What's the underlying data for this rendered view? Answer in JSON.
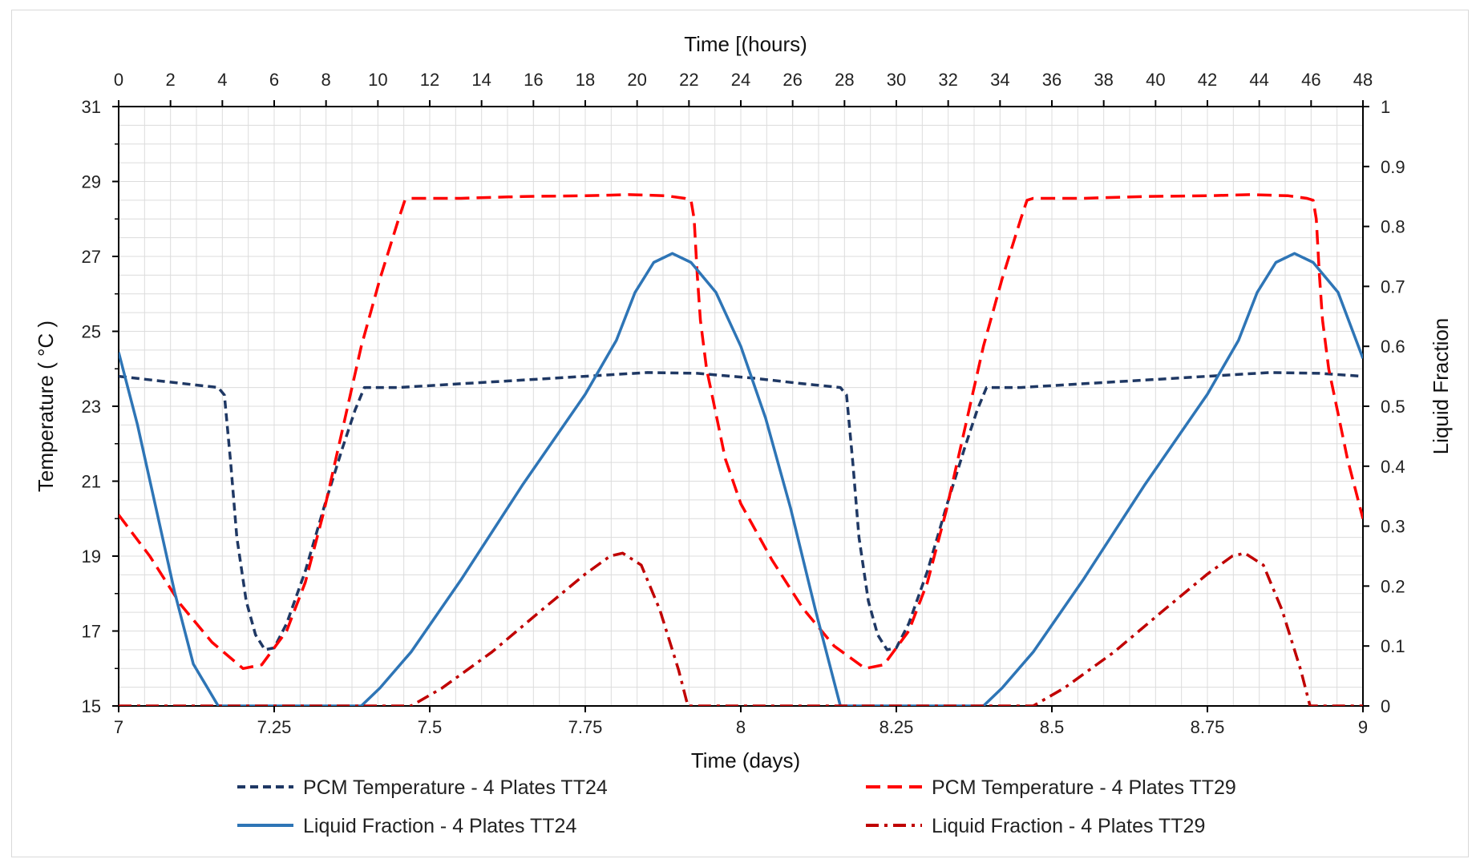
{
  "chart_data": {
    "type": "line",
    "title": "",
    "xlabel": "Time (days)",
    "x2label": "Time [(hours)",
    "ylabel": "Temperature ( °C )",
    "y2label": "Liquid Fraction",
    "xlim": [
      7,
      9
    ],
    "x2lim": [
      0,
      48
    ],
    "ylim": [
      15,
      31
    ],
    "y2lim": [
      0,
      1
    ],
    "grid": true,
    "legend_position": "bottom",
    "x_ticks": [
      "7",
      "7.25",
      "7.5",
      "7.75",
      "8",
      "8.25",
      "8.5",
      "8.75",
      "9"
    ],
    "x2_ticks": [
      "0",
      "2",
      "4",
      "6",
      "8",
      "10",
      "12",
      "14",
      "16",
      "18",
      "20",
      "22",
      "24",
      "26",
      "28",
      "30",
      "32",
      "34",
      "36",
      "38",
      "40",
      "42",
      "44",
      "46",
      "48"
    ],
    "y_ticks": [
      "15",
      "17",
      "19",
      "21",
      "23",
      "25",
      "27",
      "29",
      "31"
    ],
    "y2_ticks": [
      "0",
      "0.1",
      "0.2",
      "0.3",
      "0.4",
      "0.5",
      "0.6",
      "0.7",
      "0.8",
      "0.9",
      "1"
    ],
    "series": [
      {
        "name": "PCM Temperature - 4 Plates TT24",
        "axis": "left",
        "color": "#1f3864",
        "style": "dash",
        "points": [
          [
            7.0,
            23.8
          ],
          [
            7.08,
            23.65
          ],
          [
            7.16,
            23.5
          ],
          [
            7.17,
            23.3
          ],
          [
            7.18,
            21.5
          ],
          [
            7.19,
            19.5
          ],
          [
            7.205,
            17.8
          ],
          [
            7.22,
            16.9
          ],
          [
            7.235,
            16.5
          ],
          [
            7.25,
            16.55
          ],
          [
            7.27,
            17.2
          ],
          [
            7.3,
            18.6
          ],
          [
            7.33,
            20.3
          ],
          [
            7.36,
            21.9
          ],
          [
            7.38,
            22.9
          ],
          [
            7.395,
            23.5
          ],
          [
            7.45,
            23.5
          ],
          [
            7.55,
            23.6
          ],
          [
            7.65,
            23.7
          ],
          [
            7.75,
            23.8
          ],
          [
            7.85,
            23.9
          ],
          [
            7.93,
            23.88
          ],
          [
            8.02,
            23.75
          ],
          [
            8.1,
            23.6
          ],
          [
            8.16,
            23.5
          ],
          [
            8.17,
            23.3
          ],
          [
            8.18,
            21.5
          ],
          [
            8.19,
            19.5
          ],
          [
            8.205,
            17.8
          ],
          [
            8.22,
            16.9
          ],
          [
            8.235,
            16.5
          ],
          [
            8.25,
            16.55
          ],
          [
            8.27,
            17.2
          ],
          [
            8.3,
            18.6
          ],
          [
            8.33,
            20.3
          ],
          [
            8.36,
            21.9
          ],
          [
            8.38,
            22.9
          ],
          [
            8.395,
            23.5
          ],
          [
            8.45,
            23.5
          ],
          [
            8.55,
            23.6
          ],
          [
            8.65,
            23.7
          ],
          [
            8.75,
            23.8
          ],
          [
            8.85,
            23.9
          ],
          [
            8.93,
            23.88
          ],
          [
            9.0,
            23.8
          ]
        ]
      },
      {
        "name": "PCM Temperature - 4 Plates TT29",
        "axis": "left",
        "color": "#ff0000",
        "style": "longdash",
        "points": [
          [
            7.0,
            20.1
          ],
          [
            7.05,
            19.0
          ],
          [
            7.1,
            17.7
          ],
          [
            7.15,
            16.7
          ],
          [
            7.2,
            16.0
          ],
          [
            7.23,
            16.1
          ],
          [
            7.27,
            17.0
          ],
          [
            7.3,
            18.3
          ],
          [
            7.33,
            20.2
          ],
          [
            7.36,
            22.4
          ],
          [
            7.39,
            24.6
          ],
          [
            7.42,
            26.4
          ],
          [
            7.45,
            28.0
          ],
          [
            7.46,
            28.5
          ],
          [
            7.47,
            28.55
          ],
          [
            7.55,
            28.55
          ],
          [
            7.65,
            28.6
          ],
          [
            7.75,
            28.62
          ],
          [
            7.82,
            28.65
          ],
          [
            7.88,
            28.62
          ],
          [
            7.91,
            28.55
          ],
          [
            7.92,
            28.5
          ],
          [
            7.925,
            28.0
          ],
          [
            7.93,
            26.5
          ],
          [
            7.935,
            25.3
          ],
          [
            7.945,
            24.0
          ],
          [
            7.96,
            22.8
          ],
          [
            7.975,
            21.6
          ],
          [
            8.0,
            20.4
          ],
          [
            8.05,
            18.9
          ],
          [
            8.1,
            17.6
          ],
          [
            8.15,
            16.6
          ],
          [
            8.2,
            16.0
          ],
          [
            8.23,
            16.1
          ],
          [
            8.27,
            17.0
          ],
          [
            8.3,
            18.3
          ],
          [
            8.33,
            20.2
          ],
          [
            8.36,
            22.4
          ],
          [
            8.39,
            24.6
          ],
          [
            8.42,
            26.4
          ],
          [
            8.45,
            28.0
          ],
          [
            8.46,
            28.5
          ],
          [
            8.47,
            28.55
          ],
          [
            8.55,
            28.55
          ],
          [
            8.65,
            28.6
          ],
          [
            8.75,
            28.62
          ],
          [
            8.82,
            28.65
          ],
          [
            8.88,
            28.62
          ],
          [
            8.91,
            28.55
          ],
          [
            8.92,
            28.5
          ],
          [
            8.925,
            28.0
          ],
          [
            8.93,
            26.5
          ],
          [
            8.935,
            25.3
          ],
          [
            8.945,
            24.0
          ],
          [
            8.96,
            22.8
          ],
          [
            8.975,
            21.6
          ],
          [
            9.0,
            20.0
          ]
        ]
      },
      {
        "name": "Liquid Fraction - 4 Plates TT24",
        "axis": "right",
        "color": "#2e75b6",
        "style": "solid",
        "points": [
          [
            7.0,
            0.59
          ],
          [
            7.03,
            0.47
          ],
          [
            7.06,
            0.33
          ],
          [
            7.09,
            0.19
          ],
          [
            7.12,
            0.07
          ],
          [
            7.16,
            0.0
          ],
          [
            7.39,
            0.0
          ],
          [
            7.42,
            0.03
          ],
          [
            7.47,
            0.09
          ],
          [
            7.55,
            0.21
          ],
          [
            7.65,
            0.37
          ],
          [
            7.75,
            0.52
          ],
          [
            7.8,
            0.61
          ],
          [
            7.83,
            0.69
          ],
          [
            7.86,
            0.74
          ],
          [
            7.89,
            0.755
          ],
          [
            7.92,
            0.74
          ],
          [
            7.96,
            0.69
          ],
          [
            8.0,
            0.6
          ],
          [
            8.04,
            0.48
          ],
          [
            8.08,
            0.33
          ],
          [
            8.12,
            0.16
          ],
          [
            8.16,
            0.0
          ],
          [
            8.39,
            0.0
          ],
          [
            8.42,
            0.03
          ],
          [
            8.47,
            0.09
          ],
          [
            8.55,
            0.21
          ],
          [
            8.65,
            0.37
          ],
          [
            8.75,
            0.52
          ],
          [
            8.8,
            0.61
          ],
          [
            8.83,
            0.69
          ],
          [
            8.86,
            0.74
          ],
          [
            8.89,
            0.755
          ],
          [
            8.92,
            0.74
          ],
          [
            8.96,
            0.69
          ],
          [
            9.0,
            0.58
          ]
        ]
      },
      {
        "name": "Liquid Fraction - 4 Plates TT29",
        "axis": "right",
        "color": "#c00000",
        "style": "dashdot",
        "points": [
          [
            7.0,
            0.0
          ],
          [
            7.47,
            0.0
          ],
          [
            7.52,
            0.03
          ],
          [
            7.6,
            0.09
          ],
          [
            7.68,
            0.16
          ],
          [
            7.75,
            0.22
          ],
          [
            7.79,
            0.25
          ],
          [
            7.81,
            0.255
          ],
          [
            7.84,
            0.235
          ],
          [
            7.87,
            0.16
          ],
          [
            7.9,
            0.06
          ],
          [
            7.915,
            0.0
          ],
          [
            8.47,
            0.0
          ],
          [
            8.52,
            0.03
          ],
          [
            8.6,
            0.09
          ],
          [
            8.68,
            0.16
          ],
          [
            8.75,
            0.22
          ],
          [
            8.79,
            0.25
          ],
          [
            8.81,
            0.255
          ],
          [
            8.84,
            0.235
          ],
          [
            8.87,
            0.16
          ],
          [
            8.9,
            0.06
          ],
          [
            8.915,
            0.0
          ],
          [
            9.0,
            0.0
          ]
        ]
      }
    ]
  }
}
